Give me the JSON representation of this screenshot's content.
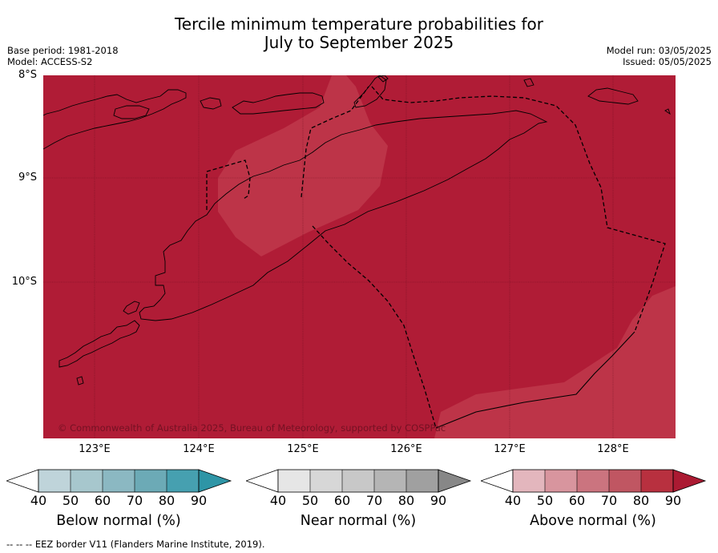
{
  "header": {
    "title_line1": "Tercile minimum temperature probabilities for",
    "title_line2": "July to September 2025",
    "base_period": "Base period: 1981-2018",
    "model": "Model: ACCESS-S2",
    "model_run": "Model run: 03/05/2025",
    "issued": "Issued: 05/05/2025"
  },
  "map": {
    "lat_labels": [
      "8°S",
      "9°S",
      "10°S"
    ],
    "lon_labels": [
      "123°E",
      "124°E",
      "125°E",
      "126°E",
      "127°E",
      "128°E"
    ],
    "credit": "© Commonwealth of Australia 2025, Bureau of Meteorology, supported by COSPPac",
    "colors": {
      "above_90": "#b01c36",
      "above_80": "#bd3448",
      "coastline": "#000000",
      "eez_border": "#000000"
    }
  },
  "legend": {
    "ticks": [
      "40",
      "50",
      "60",
      "70",
      "80",
      "90"
    ],
    "below": {
      "label": "Below normal (%)",
      "colors": [
        "#bfd4da",
        "#a7c7cd",
        "#8bb8c2",
        "#6caab6",
        "#46a0b0",
        "#2e95a6"
      ]
    },
    "near": {
      "label": "Near normal (%)",
      "colors": [
        "#e6e6e6",
        "#d7d7d7",
        "#c8c8c8",
        "#b5b5b5",
        "#a0a0a0",
        "#878787"
      ]
    },
    "above": {
      "label": "Above normal (%)",
      "colors": [
        "#e3b6bd",
        "#d8959e",
        "#cb747f",
        "#c05662",
        "#b8303f",
        "#ab1a32"
      ]
    }
  },
  "footnote": "--  --  -- EEZ border V11 (Flanders Marine Institute, 2019)."
}
